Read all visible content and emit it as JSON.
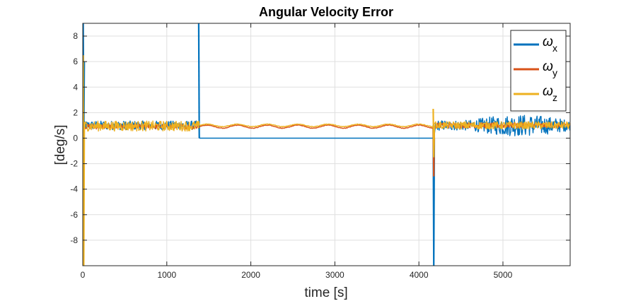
{
  "chart_data": {
    "type": "line",
    "title": "Angular Velocity Error",
    "xlabel": "time [s]",
    "ylabel": "[deg/s]",
    "xlim": [
      0,
      5800
    ],
    "ylim": [
      -10,
      9
    ],
    "xticks": [
      0,
      1000,
      2000,
      3000,
      4000,
      5000
    ],
    "yticks": [
      8,
      6,
      4,
      2,
      0,
      -2,
      -4,
      -6,
      -8
    ],
    "grid": true,
    "legend_position": "top-right",
    "series": [
      {
        "name": "ω",
        "subscript": "x",
        "color": "#0072BD",
        "segments": [
          {
            "type": "noise",
            "x": [
              0,
              1380
            ],
            "center": 1.0,
            "amplitude": 0.35
          },
          {
            "type": "flat",
            "x": [
              1390,
              4180
            ],
            "value": 0.0
          },
          {
            "type": "noise",
            "x": [
              4200,
              5800
            ],
            "center": 1.0,
            "amplitude": 0.4,
            "growth": 0.45
          }
        ],
        "spikes": [
          {
            "x": 5,
            "values": [
              9.0,
              -0.5,
              6.0
            ]
          },
          {
            "x": 1380,
            "values": [
              9.0,
              0.0
            ]
          },
          {
            "x": 4170,
            "values": [
              1.0,
              -10.0,
              0.0
            ]
          }
        ]
      },
      {
        "name": "ω",
        "subscript": "y",
        "color": "#D95319",
        "segments": [
          {
            "type": "noise",
            "x": [
              0,
              1380
            ],
            "center": 0.9,
            "amplitude": 0.2
          },
          {
            "type": "wave",
            "x": [
              1390,
              4170
            ],
            "center": 0.9,
            "amplitude": 0.12
          },
          {
            "type": "noise",
            "x": [
              4200,
              5800
            ],
            "center": 1.0,
            "amplitude": 0.2
          }
        ],
        "spikes": [
          {
            "x": 4170,
            "values": [
              0.9,
              -3.0,
              1.0
            ]
          }
        ]
      },
      {
        "name": "ω",
        "subscript": "z",
        "color": "#EDB120",
        "segments": [
          {
            "type": "noise",
            "x": [
              0,
              1380
            ],
            "center": 0.95,
            "amplitude": 0.4
          },
          {
            "type": "wave",
            "x": [
              1390,
              4170
            ],
            "center": 1.0,
            "amplitude": 0.1
          },
          {
            "type": "noise",
            "x": [
              4200,
              5800
            ],
            "center": 1.0,
            "amplitude": 0.3
          }
        ],
        "spikes": [
          {
            "x": 5,
            "values": [
              6.5,
              -10.0,
              1.0
            ]
          },
          {
            "x": 4170,
            "values": [
              2.3,
              -1.5,
              1.0
            ]
          }
        ]
      }
    ]
  }
}
